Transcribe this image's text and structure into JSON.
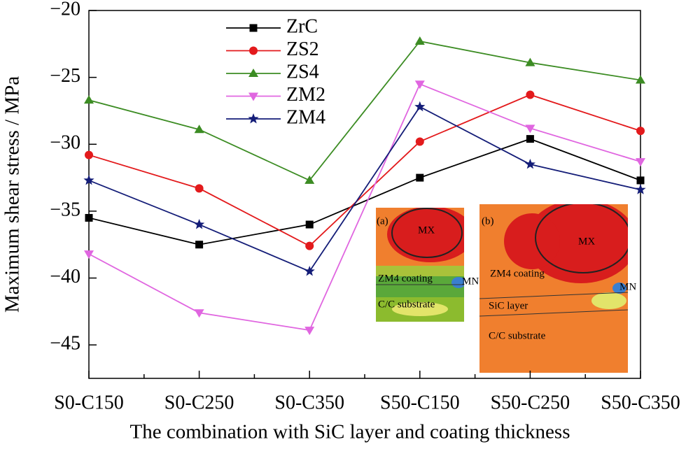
{
  "chart_data": {
    "type": "line",
    "xlabel": "The combination with SiC layer and coating thickness",
    "ylabel": "Maximum shear stress / MPa",
    "categories": [
      "S0-C150",
      "S0-C250",
      "S0-C350",
      "S50-C150",
      "S50-C250",
      "S50-C350"
    ],
    "series": [
      {
        "name": "ZrC",
        "color": "#000000",
        "marker": "square",
        "values": [
          -35.5,
          -37.5,
          -36.0,
          -32.5,
          -29.6,
          -32.7
        ]
      },
      {
        "name": "ZS2",
        "color": "#e31a1c",
        "marker": "circle",
        "values": [
          -30.8,
          -33.3,
          -37.6,
          -29.8,
          -26.3,
          -29.0
        ]
      },
      {
        "name": "ZS4",
        "color": "#3c8c23",
        "marker": "triangle-up",
        "values": [
          -26.7,
          -28.9,
          -32.7,
          -22.3,
          -23.9,
          -25.2
        ]
      },
      {
        "name": "ZM2",
        "color": "#e066e0",
        "marker": "triangle-down",
        "values": [
          -38.2,
          -42.6,
          -43.9,
          -25.5,
          -28.8,
          -31.3
        ]
      },
      {
        "name": "ZM4",
        "color": "#141d78",
        "marker": "star",
        "values": [
          -32.7,
          -36.0,
          -39.5,
          -27.2,
          -31.5,
          -33.4
        ]
      }
    ],
    "ylim": [
      -47.5,
      -20
    ],
    "yticks": [
      {
        "value": -45,
        "label": "−45"
      },
      {
        "value": -40,
        "label": "−40"
      },
      {
        "value": -35,
        "label": "−35"
      },
      {
        "value": -30,
        "label": "−30"
      },
      {
        "value": -25,
        "label": "−25"
      },
      {
        "value": -20,
        "label": "−20"
      }
    ],
    "legend": "upper center",
    "insets": [
      {
        "label": "(a)",
        "texts": [
          "MX",
          "ZM4 coating",
          "MN",
          "C/C substrate"
        ]
      },
      {
        "label": "(b)",
        "texts": [
          "MX",
          "ZM4 coating",
          "MN",
          "SiC layer",
          "C/C substrate"
        ]
      }
    ]
  }
}
